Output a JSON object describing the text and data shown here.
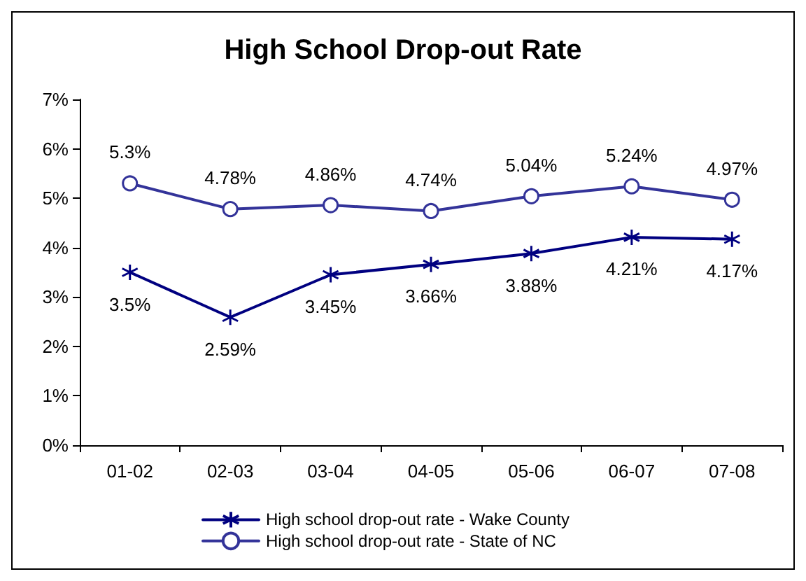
{
  "chart_data": {
    "type": "line",
    "title": "High School Drop-out Rate",
    "categories": [
      "01-02",
      "02-03",
      "03-04",
      "04-05",
      "05-06",
      "06-07",
      "07-08"
    ],
    "series": [
      {
        "name": "High school drop-out rate - Wake County",
        "color": "#000080",
        "marker": "cross",
        "values": [
          3.5,
          2.59,
          3.45,
          3.66,
          3.88,
          4.21,
          4.17
        ],
        "value_labels": [
          "3.5%",
          "2.59%",
          "3.45%",
          "3.66%",
          "3.88%",
          "4.21%",
          "4.17%"
        ]
      },
      {
        "name": "High school drop-out rate - State of NC",
        "color": "#333399",
        "marker": "circle",
        "values": [
          5.3,
          4.78,
          4.86,
          4.74,
          5.04,
          5.24,
          4.97
        ],
        "value_labels": [
          "5.3%",
          "4.78%",
          "4.86%",
          "4.74%",
          "5.04%",
          "5.24%",
          "4.97%"
        ]
      }
    ],
    "ylim": [
      0,
      7
    ],
    "yticks": [
      {
        "value": 0,
        "label": "0%"
      },
      {
        "value": 1,
        "label": "1%"
      },
      {
        "value": 2,
        "label": "2%"
      },
      {
        "value": 3,
        "label": "3%"
      },
      {
        "value": 4,
        "label": "4%"
      },
      {
        "value": 5,
        "label": "5%"
      },
      {
        "value": 6,
        "label": "6%"
      },
      {
        "value": 7,
        "label": "7%"
      }
    ],
    "grid": false,
    "legend": "bottom",
    "line_style": "solid"
  }
}
